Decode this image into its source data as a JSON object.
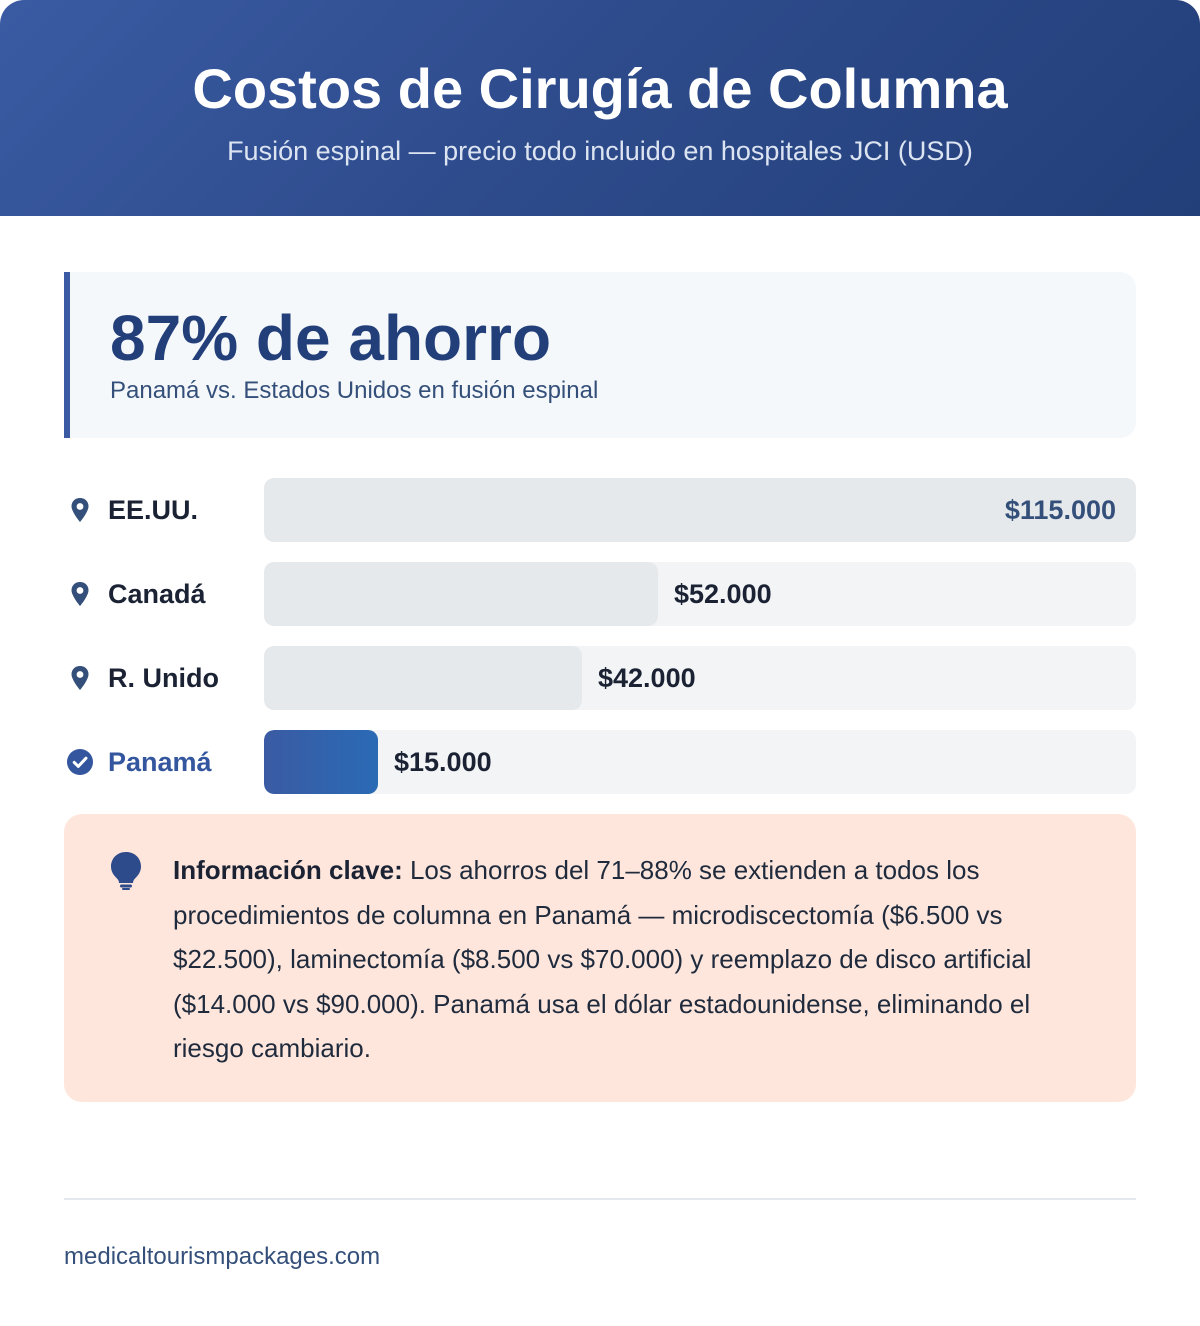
{
  "header": {
    "title": "Costos de Cirugía de Columna",
    "subtitle": "Fusión espinal — precio todo incluido en hospitales JCI (USD)"
  },
  "highlight": {
    "value": "87% de ahorro",
    "caption": "Panamá vs. Estados Unidos en fusión espinal"
  },
  "chart_data": {
    "type": "bar",
    "orientation": "horizontal",
    "categories": [
      "EE.UU.",
      "Canadá",
      "R. Unido",
      "Panamá"
    ],
    "values": [
      115000,
      52000,
      42000,
      15000
    ],
    "value_labels": [
      "$115.000",
      "$52.000",
      "$42.000",
      "$15.000"
    ],
    "highlighted_category": "Panamá",
    "xlim": [
      0,
      115000
    ]
  },
  "colors": {
    "accent": "#3a5ba3",
    "highlight_bar": "#2a6ab5",
    "neutral_bar": "#e6e9ec",
    "insight_bg": "#fee6dc"
  },
  "icons": {
    "row": "map-pin-icon",
    "highlight_row": "check-circle-icon",
    "insight": "lightbulb-icon"
  },
  "insight": {
    "label": "Información clave:",
    "text": " Los ahorros del 71–88% se extienden a todos los procedimientos de columna en Panamá — microdiscectomía ($6.500 vs $22.500), laminectomía ($8.500 vs $70.000) y reemplazo de disco artificial ($14.000 vs $90.000). Panamá usa el dólar estadounidense, eliminando el riesgo cambiario."
  },
  "footer": {
    "site": "medicaltourismpackages.com"
  }
}
